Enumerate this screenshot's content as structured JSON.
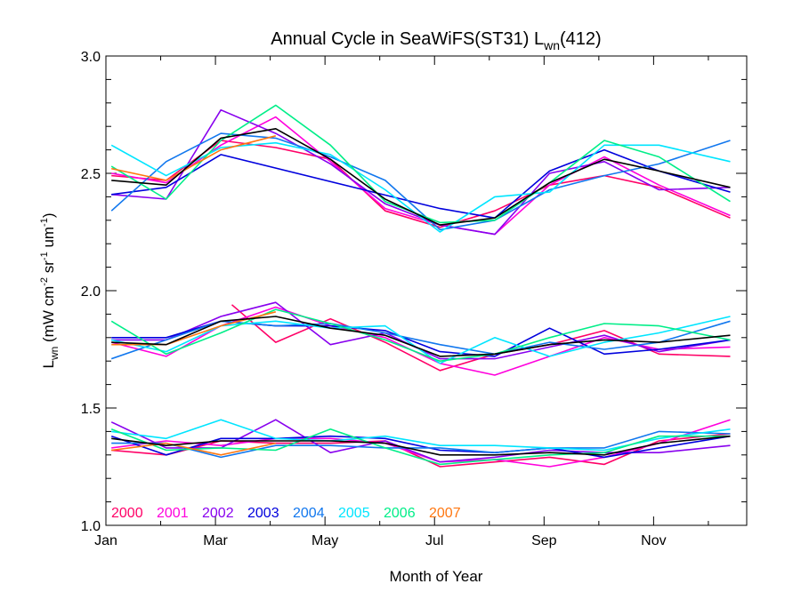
{
  "chart_data": {
    "type": "line",
    "title": "Annual Cycle in SeaWiFS(ST31) L",
    "title_sub": "wn",
    "title_tail": "(412)",
    "ylabel_main": "L",
    "ylabel_sub": "wn",
    "ylabel_units_open": " (mW cm",
    "ylabel_exp1": "-2",
    "ylabel_units_sr": " sr",
    "ylabel_exp2": "-1",
    "ylabel_units_um": " um",
    "ylabel_exp3": "-1",
    "ylabel_units_close": ")",
    "xlabel": "Month of Year",
    "xlim": [
      1,
      12.7
    ],
    "ylim": [
      1.0,
      3.0
    ],
    "x_ticks": [
      {
        "value": 1,
        "label": "Jan"
      },
      {
        "value": 3,
        "label": "Mar"
      },
      {
        "value": 5,
        "label": "May"
      },
      {
        "value": 7,
        "label": "Jul"
      },
      {
        "value": 9,
        "label": "Sep"
      },
      {
        "value": 11,
        "label": "Nov"
      }
    ],
    "y_ticks": [
      {
        "value": 1.0,
        "label": "1.0"
      },
      {
        "value": 1.5,
        "label": "1.5"
      },
      {
        "value": 2.0,
        "label": "2.0"
      },
      {
        "value": 2.5,
        "label": "2.5"
      },
      {
        "value": 3.0,
        "label": "3.0"
      }
    ],
    "grid": false,
    "legend_placement": "bottom-left",
    "series": [
      {
        "name": "2000",
        "color": "#ff0066",
        "groups": [
          {
            "x": [
              1.1,
              2.1,
              3.1,
              4.1,
              5.1,
              6.1,
              7.1,
              8.1,
              9.1,
              10.1,
              11.1,
              12.4
            ],
            "y": [
              2.49,
              2.47,
              2.64,
              2.61,
              2.56,
              2.34,
              2.27,
              2.34,
              2.45,
              2.49,
              2.44,
              2.31
            ]
          },
          {
            "x": [
              3.3,
              4.1,
              5.1,
              6.1,
              7.1,
              8.1,
              9.1,
              10.1,
              11.1,
              12.4
            ],
            "y": [
              1.94,
              1.78,
              1.88,
              1.78,
              1.66,
              1.73,
              1.77,
              1.83,
              1.73,
              1.72
            ]
          },
          {
            "x": [
              1.1,
              2.1,
              3.1,
              4.1,
              5.1,
              6.1,
              7.1,
              8.1,
              9.1,
              10.1,
              11.1,
              12.4
            ],
            "y": [
              1.32,
              1.3,
              1.36,
              1.35,
              1.35,
              1.36,
              1.25,
              1.27,
              1.29,
              1.26,
              1.36,
              1.39
            ]
          }
        ]
      },
      {
        "name": "2001",
        "color": "#ff00dd",
        "groups": [
          {
            "x": [
              1.1,
              2.1,
              3.1,
              4.1,
              5.1,
              6.1,
              7.1,
              8.1,
              9.1,
              10.1,
              11.1,
              12.4
            ],
            "y": [
              2.5,
              2.46,
              2.62,
              2.74,
              2.55,
              2.35,
              2.28,
              2.24,
              2.45,
              2.57,
              2.45,
              2.32
            ]
          },
          {
            "x": [
              1.1,
              2.1,
              3.1,
              4.1,
              5.1,
              6.1,
              7.1,
              8.1,
              9.1,
              10.1,
              11.1,
              12.4
            ],
            "y": [
              1.78,
              1.72,
              1.85,
              1.93,
              1.85,
              1.8,
              1.69,
              1.64,
              1.72,
              1.8,
              1.75,
              1.76
            ]
          },
          {
            "x": [
              1.1,
              2.1,
              3.1,
              4.1,
              5.1,
              6.1,
              7.1,
              8.1,
              9.1,
              10.1,
              11.1,
              12.4
            ],
            "y": [
              1.33,
              1.36,
              1.34,
              1.37,
              1.37,
              1.35,
              1.27,
              1.28,
              1.25,
              1.29,
              1.35,
              1.45
            ]
          }
        ]
      },
      {
        "name": "2002",
        "color": "#8800ee",
        "groups": [
          {
            "x": [
              1.1,
              2.1,
              3.1,
              4.1,
              5.1,
              6.1,
              7.1,
              8.1,
              9.1,
              10.1,
              11.1,
              12.4
            ],
            "y": [
              2.41,
              2.39,
              2.77,
              2.67,
              2.54,
              2.37,
              2.28,
              2.24,
              2.5,
              2.55,
              2.43,
              2.44
            ]
          },
          {
            "x": [
              1.1,
              2.1,
              3.1,
              4.1,
              5.1,
              6.1,
              7.1,
              8.1,
              9.1,
              10.1,
              11.1,
              12.4
            ],
            "y": [
              1.79,
              1.79,
              1.89,
              1.95,
              1.77,
              1.82,
              1.71,
              1.71,
              1.76,
              1.81,
              1.74,
              1.79
            ]
          },
          {
            "x": [
              1.1,
              2.1,
              3.1,
              4.1,
              5.1,
              6.1,
              7.1,
              8.1,
              9.1,
              10.1,
              11.1,
              12.4
            ],
            "y": [
              1.44,
              1.33,
              1.33,
              1.45,
              1.31,
              1.36,
              1.27,
              1.29,
              1.32,
              1.31,
              1.31,
              1.34
            ]
          }
        ]
      },
      {
        "name": "2003",
        "color": "#0000dd",
        "groups": [
          {
            "x": [
              1.1,
              2.1,
              3.1,
              7.1,
              8.1,
              9.1,
              10.1,
              11.1,
              12.4
            ],
            "y": [
              2.41,
              2.44,
              2.58,
              2.35,
              2.31,
              2.51,
              2.6,
              2.51,
              2.42
            ]
          },
          {
            "x": [
              1.1,
              2.1,
              3.1,
              4.1,
              5.1,
              6.1,
              7.1,
              8.1,
              9.1,
              10.1,
              11.1,
              12.4
            ],
            "y": [
              1.8,
              1.8,
              1.87,
              1.85,
              1.85,
              1.83,
              1.74,
              1.72,
              1.84,
              1.73,
              1.75,
              1.79
            ]
          },
          {
            "x": [
              1.1,
              2.1,
              3.1,
              4.1,
              5.1,
              6.1,
              7.1,
              8.1,
              9.1,
              10.1,
              11.1,
              12.4
            ],
            "y": [
              1.38,
              1.3,
              1.37,
              1.37,
              1.38,
              1.37,
              1.32,
              1.31,
              1.33,
              1.29,
              1.33,
              1.38
            ]
          }
        ]
      },
      {
        "name": "2004",
        "color": "#1177ee",
        "groups": [
          {
            "x": [
              1.1,
              2.1,
              3.1,
              4.1,
              5.1,
              6.1,
              7.1,
              8.1,
              9.1,
              10.1,
              11.1,
              12.4
            ],
            "y": [
              2.34,
              2.55,
              2.67,
              2.65,
              2.57,
              2.47,
              2.26,
              2.3,
              2.43,
              2.49,
              2.54,
              2.64
            ]
          },
          {
            "x": [
              1.1,
              2.1,
              3.1,
              4.1,
              5.1,
              6.1,
              7.1,
              8.1,
              9.1,
              10.1,
              11.1,
              12.4
            ],
            "y": [
              1.71,
              1.79,
              1.87,
              1.85,
              1.86,
              1.82,
              1.77,
              1.73,
              1.78,
              1.75,
              1.78,
              1.87
            ]
          },
          {
            "x": [
              1.1,
              2.1,
              3.1,
              4.1,
              5.1,
              6.1,
              7.1,
              8.1,
              9.1,
              10.1,
              11.1,
              12.4
            ],
            "y": [
              1.35,
              1.35,
              1.29,
              1.34,
              1.34,
              1.33,
              1.33,
              1.31,
              1.33,
              1.33,
              1.4,
              1.39
            ]
          }
        ]
      },
      {
        "name": "2005",
        "color": "#00e5ff",
        "groups": [
          {
            "x": [
              1.1,
              2.1,
              3.1,
              4.1,
              5.1,
              6.1,
              7.1,
              8.1,
              9.1,
              10.1,
              11.1,
              12.4
            ],
            "y": [
              2.62,
              2.49,
              2.61,
              2.63,
              2.58,
              2.43,
              2.25,
              2.4,
              2.42,
              2.62,
              2.62,
              2.55
            ]
          },
          {
            "x": [
              1.1,
              2.1,
              3.1,
              4.1,
              5.1,
              6.1,
              7.1,
              8.1,
              9.1,
              10.1,
              11.1,
              12.4
            ],
            "y": [
              1.79,
              1.74,
              1.85,
              1.87,
              1.84,
              1.85,
              1.69,
              1.8,
              1.72,
              1.78,
              1.82,
              1.89
            ]
          },
          {
            "x": [
              1.1,
              2.1,
              3.1,
              4.1,
              5.1,
              6.1,
              7.1,
              8.1,
              9.1,
              10.1,
              11.1,
              12.4
            ],
            "y": [
              1.4,
              1.37,
              1.45,
              1.37,
              1.36,
              1.38,
              1.34,
              1.34,
              1.33,
              1.32,
              1.37,
              1.41
            ]
          }
        ]
      },
      {
        "name": "2006",
        "color": "#00ee88",
        "groups": [
          {
            "x": [
              1.1,
              2.1,
              3.1,
              4.1,
              5.1,
              6.1,
              7.1,
              8.1,
              9.1,
              10.1,
              11.1,
              12.4
            ],
            "y": [
              2.53,
              2.39,
              2.64,
              2.79,
              2.62,
              2.38,
              2.29,
              2.3,
              2.46,
              2.64,
              2.57,
              2.38
            ]
          },
          {
            "x": [
              1.1,
              2.1,
              3.1,
              4.1,
              5.1,
              6.1,
              7.1,
              8.1,
              9.1,
              10.1,
              11.1,
              12.4
            ],
            "y": [
              1.87,
              1.73,
              1.82,
              1.92,
              1.86,
              1.79,
              1.7,
              1.73,
              1.8,
              1.86,
              1.85,
              1.79
            ]
          },
          {
            "x": [
              1.1,
              2.1,
              3.1,
              4.1,
              5.1,
              6.1,
              7.1,
              8.1,
              9.1,
              10.1,
              11.1,
              12.4
            ],
            "y": [
              1.41,
              1.32,
              1.33,
              1.32,
              1.41,
              1.33,
              1.26,
              1.28,
              1.3,
              1.31,
              1.38,
              1.38
            ]
          }
        ]
      },
      {
        "name": "2007",
        "color": "#ff7711",
        "groups": [
          {
            "x": [
              1.1,
              2.1,
              3.1,
              4.1
            ],
            "y": [
              2.52,
              2.47,
              2.6,
              2.66
            ]
          },
          {
            "x": [
              1.1,
              2.1,
              3.1,
              4.1
            ],
            "y": [
              1.77,
              1.77,
              1.85,
              1.91
            ]
          },
          {
            "x": [
              1.1,
              2.1,
              3.1,
              4.1
            ],
            "y": [
              1.32,
              1.35,
              1.3,
              1.35
            ]
          }
        ]
      },
      {
        "name": "",
        "color": "#000000",
        "groups": [
          {
            "x": [
              1.1,
              2.1,
              3.1,
              4.1,
              5.1,
              6.1,
              7.1,
              8.1,
              9.1,
              10.1,
              11.1,
              12.4
            ],
            "y": [
              2.47,
              2.45,
              2.65,
              2.69,
              2.56,
              2.39,
              2.28,
              2.31,
              2.46,
              2.56,
              2.51,
              2.44
            ]
          },
          {
            "x": [
              1.1,
              2.1,
              3.1,
              4.1,
              5.1,
              6.1,
              7.1,
              8.1,
              9.1,
              10.1,
              11.1,
              12.4
            ],
            "y": [
              1.78,
              1.77,
              1.87,
              1.89,
              1.84,
              1.81,
              1.72,
              1.73,
              1.77,
              1.79,
              1.78,
              1.81
            ]
          },
          {
            "x": [
              1.1,
              2.1,
              3.1,
              4.1,
              5.1,
              6.1,
              7.1,
              8.1,
              9.1,
              10.1,
              11.1,
              12.4
            ],
            "y": [
              1.37,
              1.34,
              1.36,
              1.36,
              1.36,
              1.35,
              1.3,
              1.3,
              1.31,
              1.3,
              1.35,
              1.38
            ]
          }
        ]
      }
    ]
  }
}
